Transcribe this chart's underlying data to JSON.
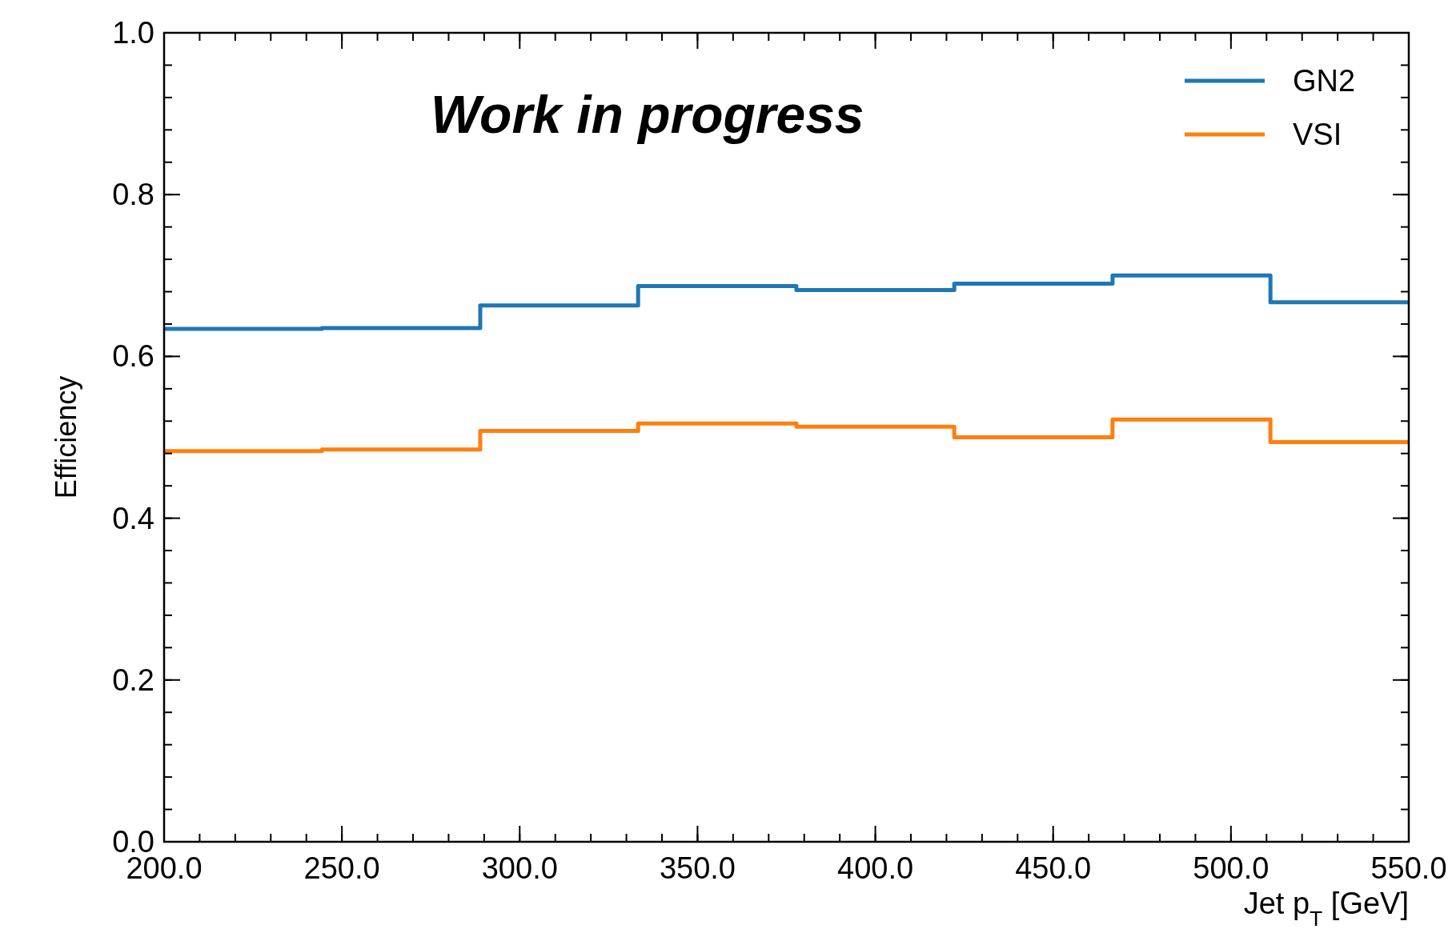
{
  "chart_data": {
    "type": "step",
    "xlabel": "Jet p$_{T}$ [GeV]",
    "ylabel": "Efficiency",
    "annotations": [
      "Work in progress"
    ],
    "x": [
      200,
      244.4,
      288.9,
      333.3,
      377.8,
      422.2,
      466.7,
      511.1,
      550
    ],
    "series": [
      {
        "name": "GN2",
        "color": "#1f77b4",
        "values": [
          0.634,
          0.635,
          0.663,
          0.687,
          0.682,
          0.69,
          0.7,
          0.667,
          0.667
        ]
      },
      {
        "name": "VSI",
        "color": "#ff7f0e",
        "values": [
          0.483,
          0.485,
          0.508,
          0.517,
          0.513,
          0.5,
          0.522,
          0.494,
          0.494
        ]
      }
    ],
    "xlim": [
      200,
      550
    ],
    "xticks": [
      {
        "value": 200,
        "label": "200.0"
      },
      {
        "value": 250,
        "label": "250.0"
      },
      {
        "value": 300,
        "label": "300.0"
      },
      {
        "value": 350,
        "label": "350.0"
      },
      {
        "value": 400,
        "label": "400.0"
      },
      {
        "value": 450,
        "label": "450.0"
      },
      {
        "value": 500,
        "label": "500.0"
      },
      {
        "value": 550,
        "label": "550.0"
      }
    ],
    "ylim": [
      0,
      1
    ],
    "yticks": [
      {
        "value": 0,
        "label": "0.0"
      },
      {
        "value": 0.2,
        "label": "0.2"
      },
      {
        "value": 0.4,
        "label": "0.4"
      },
      {
        "value": 0.6,
        "label": "0.6"
      },
      {
        "value": 0.8,
        "label": "0.8"
      },
      {
        "value": 1,
        "label": "1.0"
      }
    ],
    "legend": "top right"
  }
}
